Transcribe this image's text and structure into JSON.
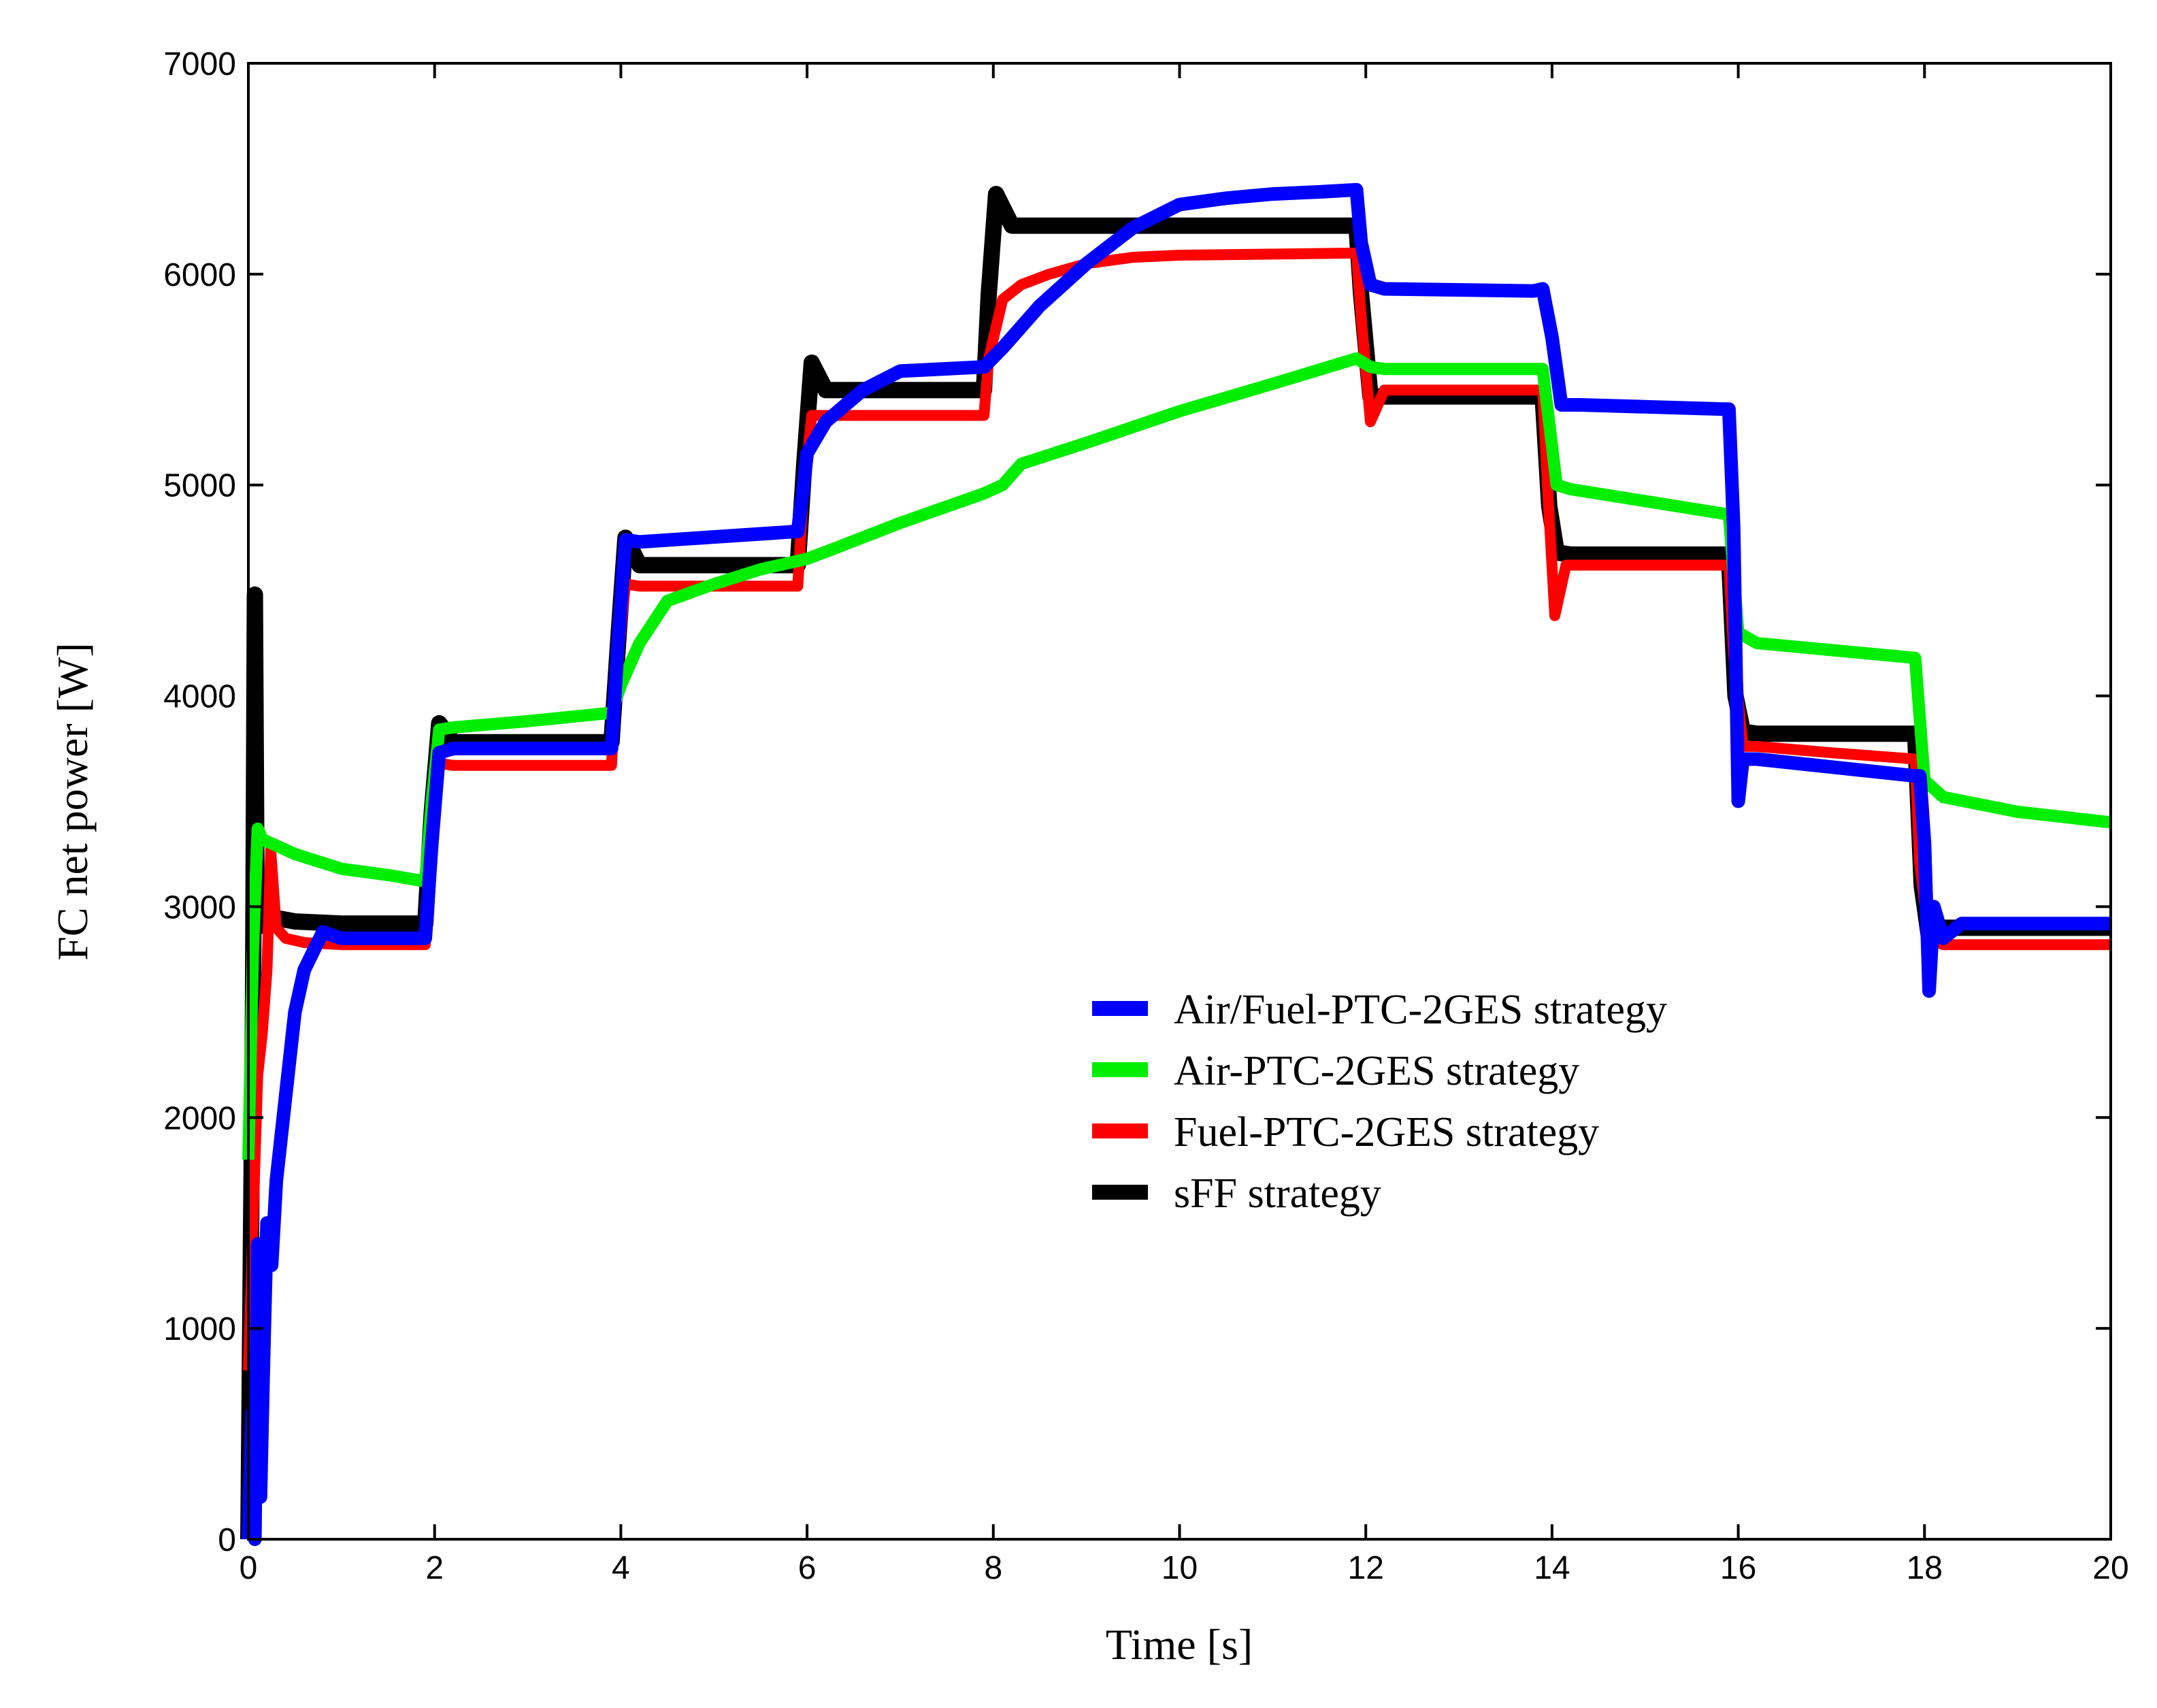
{
  "chart_data": {
    "type": "line",
    "title": "",
    "xlabel": "Time [s]",
    "ylabel": "FC net power [W]",
    "xlim": [
      0,
      20
    ],
    "ylim": [
      0,
      7000
    ],
    "xticks": [
      0,
      2,
      4,
      6,
      8,
      10,
      12,
      14,
      16,
      18,
      20
    ],
    "yticks": [
      0,
      1000,
      2000,
      3000,
      4000,
      5000,
      6000,
      7000
    ],
    "grid": false,
    "legend_position": "center-right",
    "series": [
      {
        "name": "sFF strategy",
        "color": "#000000",
        "x": [
          0,
          0.05,
          0.07,
          0.09,
          0.12,
          0.16,
          0.25,
          0.5,
          1.0,
          1.9,
          1.97,
          2.05,
          2.2,
          3.9,
          3.97,
          4.05,
          4.2,
          5.9,
          5.97,
          6.05,
          6.2,
          7.9,
          7.95,
          8.03,
          8.2,
          11.9,
          11.95,
          12.05,
          12.2,
          13.9,
          13.97,
          14.05,
          14.2,
          15.9,
          15.97,
          16.05,
          16.2,
          17.9,
          17.97,
          18.05,
          18.2,
          20
        ],
        "y": [
          0,
          2500,
          4480,
          2900,
          3000,
          2950,
          2950,
          2930,
          2920,
          2920,
          3450,
          3870,
          3780,
          3780,
          4250,
          4750,
          4620,
          4620,
          5100,
          5580,
          5450,
          5450,
          5900,
          6380,
          6230,
          6230,
          5900,
          5420,
          5420,
          5420,
          4900,
          4680,
          4670,
          4670,
          4000,
          3830,
          3820,
          3820,
          3100,
          2850,
          2900,
          2900
        ]
      },
      {
        "name": "Fuel-PTC-2GES strategy",
        "color": "#ff0000",
        "x": [
          0,
          0.05,
          0.1,
          0.15,
          0.2,
          0.24,
          0.3,
          0.4,
          0.6,
          1.0,
          1.9,
          1.95,
          2.05,
          2.2,
          3.9,
          3.95,
          4.05,
          4.2,
          5.9,
          5.95,
          6.05,
          6.2,
          7.9,
          7.95,
          8.1,
          8.3,
          8.6,
          9.0,
          9.5,
          10.0,
          11.9,
          11.95,
          12.05,
          12.2,
          13.9,
          13.95,
          14.03,
          14.15,
          15.9,
          15.95,
          16.05,
          16.2,
          17.0,
          17.9,
          17.95,
          18.05,
          18.2,
          20
        ],
        "y": [
          800,
          1500,
          2200,
          2400,
          2700,
          3270,
          2900,
          2850,
          2830,
          2820,
          2820,
          3200,
          3680,
          3670,
          3670,
          4100,
          4530,
          4520,
          4520,
          4900,
          5330,
          5330,
          5330,
          5600,
          5880,
          5950,
          6000,
          6050,
          6080,
          6090,
          6100,
          5800,
          5300,
          5450,
          5450,
          5000,
          4380,
          4620,
          4620,
          4200,
          3760,
          3760,
          3730,
          3700,
          3200,
          2850,
          2820,
          2820
        ]
      },
      {
        "name": "Air-PTC-2GES strategy",
        "color": "#00ee00",
        "x": [
          0,
          0.05,
          0.1,
          0.15,
          0.5,
          1.0,
          1.5,
          1.9,
          1.97,
          2.05,
          2.2,
          3.0,
          3.9,
          4.0,
          4.2,
          4.5,
          5.0,
          5.5,
          6.0,
          6.3,
          7.0,
          7.9,
          8.1,
          8.3,
          9.0,
          10.0,
          11.0,
          11.9,
          12.05,
          12.2,
          13.9,
          14.05,
          14.2,
          15.9,
          16.0,
          16.2,
          17.9,
          18.0,
          18.2,
          19.0,
          20
        ],
        "y": [
          1800,
          2800,
          3370,
          3320,
          3250,
          3180,
          3150,
          3120,
          3500,
          3840,
          3850,
          3880,
          3920,
          4050,
          4250,
          4450,
          4530,
          4600,
          4650,
          4700,
          4820,
          4960,
          5000,
          5100,
          5200,
          5350,
          5480,
          5600,
          5560,
          5550,
          5550,
          5000,
          4980,
          4860,
          4300,
          4250,
          4180,
          3600,
          3520,
          3450,
          3400
        ]
      },
      {
        "name": "Air/Fuel-PTC-2GES strategy",
        "color": "#0000ff",
        "x": [
          0,
          0.04,
          0.07,
          0.1,
          0.13,
          0.16,
          0.2,
          0.25,
          0.3,
          0.4,
          0.5,
          0.6,
          0.8,
          1.0,
          1.9,
          1.97,
          2.05,
          2.2,
          3.9,
          3.97,
          4.05,
          4.2,
          5.9,
          5.95,
          6.0,
          6.2,
          6.6,
          7.0,
          7.9,
          8.1,
          8.5,
          9.0,
          9.5,
          10.0,
          10.5,
          11.0,
          11.5,
          11.9,
          11.95,
          12.05,
          12.2,
          13.8,
          13.9,
          14.0,
          14.1,
          14.3,
          15.85,
          15.9,
          15.95,
          16.0,
          16.05,
          16.2,
          17.9,
          17.95,
          18.0,
          18.05,
          18.1,
          18.2,
          18.4,
          20
        ],
        "y": [
          0,
          600,
          0,
          1400,
          200,
          800,
          1500,
          1300,
          1700,
          2100,
          2500,
          2700,
          2880,
          2850,
          2850,
          3300,
          3730,
          3750,
          3750,
          4250,
          4740,
          4730,
          4780,
          4950,
          5150,
          5300,
          5450,
          5540,
          5560,
          5650,
          5850,
          6050,
          6220,
          6330,
          6360,
          6380,
          6390,
          6400,
          6150,
          5950,
          5930,
          5920,
          5930,
          5700,
          5380,
          5380,
          5360,
          5360,
          4800,
          3500,
          3700,
          3700,
          3620,
          3620,
          3300,
          2600,
          3000,
          2850,
          2920,
          2920
        ]
      }
    ],
    "legend": [
      {
        "label": "Air/Fuel-PTC-2GES strategy",
        "color": "#0000ff"
      },
      {
        "label": "Air-PTC-2GES strategy",
        "color": "#00ee00"
      },
      {
        "label": "Fuel-PTC-2GES strategy",
        "color": "#ff0000"
      },
      {
        "label": "sFF strategy",
        "color": "#000000"
      }
    ]
  }
}
